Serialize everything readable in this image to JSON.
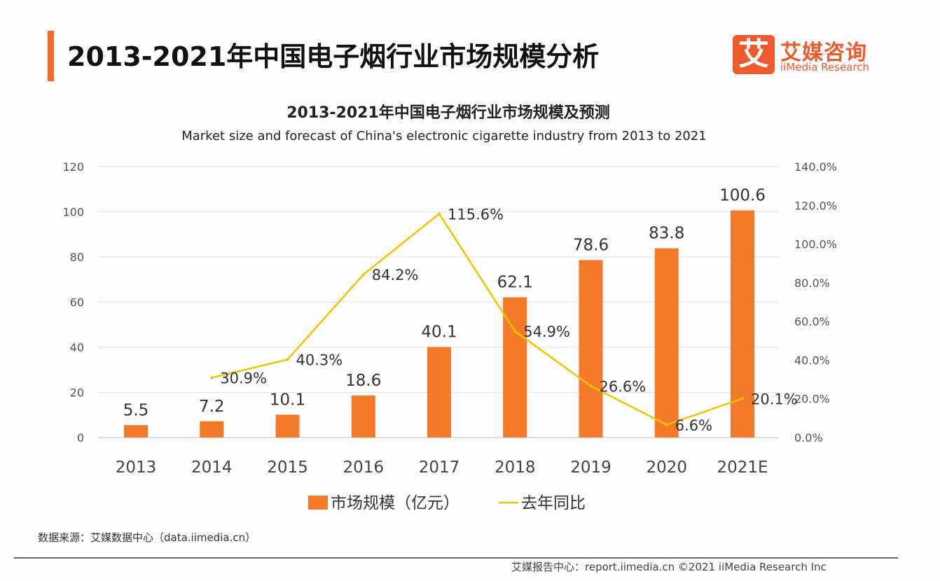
{
  "header": {
    "title": "2013-2021年中国电子烟行业市场规模分析",
    "logo_mark": "艾",
    "logo_cn": "艾媒咨询",
    "logo_en": "iiMedia Research"
  },
  "chart_data": {
    "type": "bar+line",
    "title": "2013-2021年中国电子烟行业市场规模及预测",
    "subtitle": "Market size and forecast of China's electronic cigarette industry from 2013 to 2021",
    "categories": [
      "2013",
      "2014",
      "2015",
      "2016",
      "2017",
      "2018",
      "2019",
      "2020",
      "2021E"
    ],
    "series": [
      {
        "name": "市场规模（亿元）",
        "type": "bar",
        "axis": "left",
        "color": "#f47a2a",
        "values": [
          5.5,
          7.2,
          10.1,
          18.6,
          40.1,
          62.1,
          78.6,
          83.8,
          100.6
        ],
        "labels": [
          "5.5",
          "7.2",
          "10.1",
          "18.6",
          "40.1",
          "62.1",
          "78.6",
          "83.8",
          "100.6"
        ]
      },
      {
        "name": "去年同比",
        "type": "line",
        "axis": "right",
        "color": "#f5c200",
        "values": [
          null,
          30.9,
          40.3,
          84.2,
          115.6,
          54.9,
          26.6,
          6.6,
          20.1
        ],
        "labels": [
          "",
          "30.9%",
          "40.3%",
          "84.2%",
          "115.6%",
          "54.9%",
          "26.6%",
          "6.6%",
          "20.1%"
        ]
      }
    ],
    "ylim_left": [
      0,
      120
    ],
    "yticks_left": [
      "0",
      "20",
      "40",
      "60",
      "80",
      "100",
      "120"
    ],
    "ylim_right": [
      0,
      140
    ],
    "yticks_right": [
      "0.0%",
      "20.0%",
      "40.0%",
      "60.0%",
      "80.0%",
      "100.0%",
      "120.0%",
      "140.0%"
    ],
    "grid": true,
    "legend": "bottom"
  },
  "footer": {
    "source": "数据来源：艾媒数据中心（data.iimedia.cn）",
    "credit": "艾媒报告中心：report.iimedia.cn  ©2021  iiMedia Research  Inc"
  }
}
